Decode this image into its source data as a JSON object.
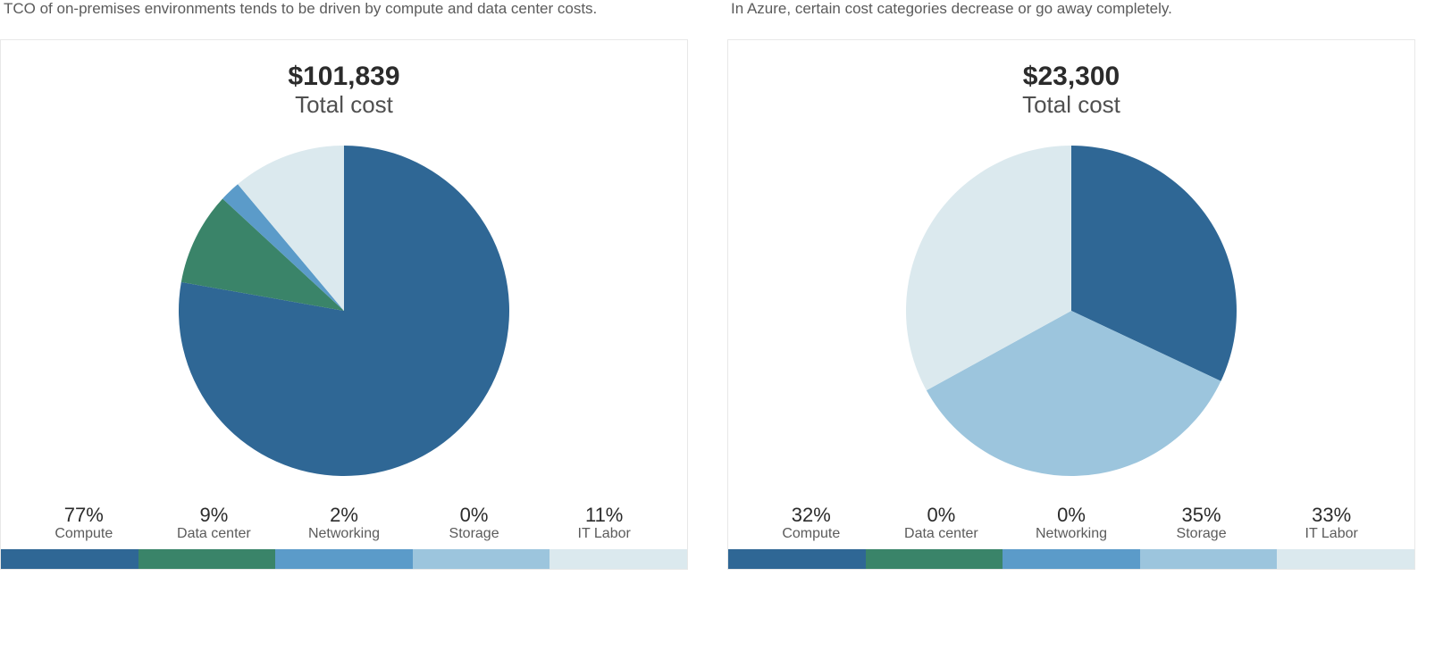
{
  "panels": [
    {
      "header": "TCO of on-premises environments tends to be driven by compute and data center costs.",
      "total_value": "$101,839",
      "total_label": "Total cost",
      "chart": {
        "type": "pie",
        "radius": 185,
        "background_color": "#ffffff",
        "slices": [
          {
            "label": "Compute",
            "percent": 77,
            "color": "#2f6795"
          },
          {
            "label": "Data center",
            "percent": 9,
            "color": "#3a8469"
          },
          {
            "label": "Networking",
            "percent": 2,
            "color": "#5b9bc9"
          },
          {
            "label": "Storage",
            "percent": 0,
            "color": "#9cc5dd"
          },
          {
            "label": "IT Labor",
            "percent": 11,
            "color": "#dbe9ee"
          }
        ],
        "legend_fontsize_pct": 22,
        "legend_fontsize_name": 16,
        "title_fontsize_value": 30,
        "title_fontsize_label": 26
      },
      "legend_colors": [
        "#2f6795",
        "#3a8469",
        "#5b9bc9",
        "#9cc5dd",
        "#dbe9ee"
      ]
    },
    {
      "header": "In Azure, certain cost categories decrease or go away completely.",
      "total_value": "$23,300",
      "total_label": "Total cost",
      "chart": {
        "type": "pie",
        "radius": 185,
        "background_color": "#ffffff",
        "slices": [
          {
            "label": "Compute",
            "percent": 32,
            "color": "#2f6795"
          },
          {
            "label": "Data center",
            "percent": 0,
            "color": "#3a8469"
          },
          {
            "label": "Networking",
            "percent": 0,
            "color": "#5b9bc9"
          },
          {
            "label": "Storage",
            "percent": 35,
            "color": "#9cc5dd"
          },
          {
            "label": "IT Labor",
            "percent": 33,
            "color": "#dbe9ee"
          }
        ],
        "legend_fontsize_pct": 22,
        "legend_fontsize_name": 16,
        "title_fontsize_value": 30,
        "title_fontsize_label": 26
      },
      "legend_colors": [
        "#2f6795",
        "#3a8469",
        "#5b9bc9",
        "#9cc5dd",
        "#dbe9ee"
      ]
    }
  ]
}
